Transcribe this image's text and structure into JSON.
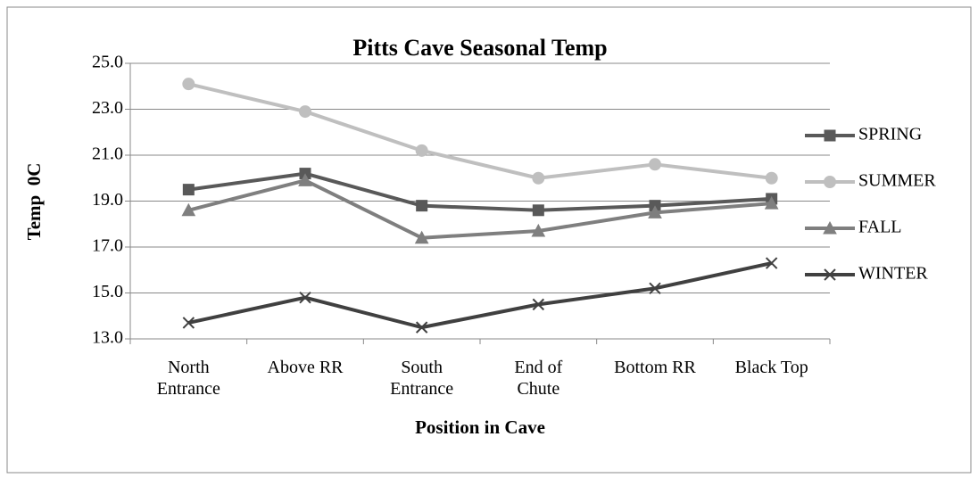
{
  "chart_data": {
    "type": "line",
    "title": "Pitts Cave Seasonal Temp",
    "x_label": "Position in Cave",
    "y_label": "Temp  0C",
    "categories": [
      "North\nEntrance",
      "Above RR",
      "South\nEntrance",
      "End of\nChute",
      "Bottom RR",
      "Black Top"
    ],
    "series": [
      {
        "name": "SPRING",
        "color": "#595959",
        "marker": "square",
        "values": [
          19.5,
          20.2,
          18.8,
          18.6,
          18.8,
          19.1
        ]
      },
      {
        "name": "SUMMER",
        "color": "#bfbfbf",
        "marker": "circle",
        "values": [
          24.1,
          22.9,
          21.2,
          20.0,
          20.6,
          20.0
        ]
      },
      {
        "name": "FALL",
        "color": "#7f7f7f",
        "marker": "triangle",
        "values": [
          18.6,
          19.9,
          17.4,
          17.7,
          18.5,
          18.9
        ]
      },
      {
        "name": "WINTER",
        "color": "#404040",
        "marker": "x",
        "values": [
          13.7,
          14.8,
          13.5,
          14.5,
          15.2,
          16.3
        ]
      }
    ],
    "ylim": [
      13,
      25
    ],
    "yticks": [
      {
        "value": 13,
        "label": "13.0"
      },
      {
        "value": 15,
        "label": "15.0"
      },
      {
        "value": 17,
        "label": "17.0"
      },
      {
        "value": 19,
        "label": "19.0"
      },
      {
        "value": 21,
        "label": "21.0"
      },
      {
        "value": 23,
        "label": "23.0"
      },
      {
        "value": 25,
        "label": "25.0"
      }
    ],
    "grid": true,
    "legend": "right"
  }
}
